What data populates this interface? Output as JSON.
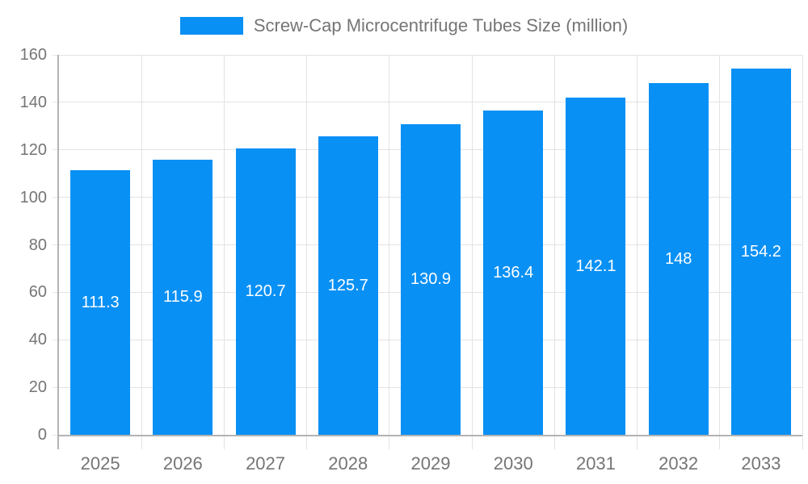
{
  "legend": {
    "label": "Screw-Cap Microcentrifuge Tubes Size (million)"
  },
  "chart_data": {
    "type": "bar",
    "title": "Screw-Cap Microcentrifuge Tubes Size (million)",
    "categories": [
      "2025",
      "2026",
      "2027",
      "2028",
      "2029",
      "2030",
      "2031",
      "2032",
      "2033"
    ],
    "values": [
      111.3,
      115.9,
      120.7,
      125.7,
      130.9,
      136.4,
      142.1,
      148,
      154.2
    ],
    "value_labels": [
      "111.3",
      "115.9",
      "120.7",
      "125.7",
      "130.9",
      "136.4",
      "142.1",
      "148",
      "154.2"
    ],
    "xlabel": "",
    "ylabel": "",
    "ylim": [
      0,
      160
    ],
    "yticks": [
      0,
      20,
      40,
      60,
      80,
      100,
      120,
      140,
      160
    ],
    "grid": "on",
    "legend_position": "top",
    "value_label_position": "inside-center",
    "colors": {
      "bar": "#0890f5",
      "bar_label": "#ffffff",
      "axis_text": "#757575",
      "legend_text": "#757575",
      "axis_line": "#b3b3b3",
      "gridline": "#e3e3e3",
      "background": "#ffffff"
    }
  }
}
